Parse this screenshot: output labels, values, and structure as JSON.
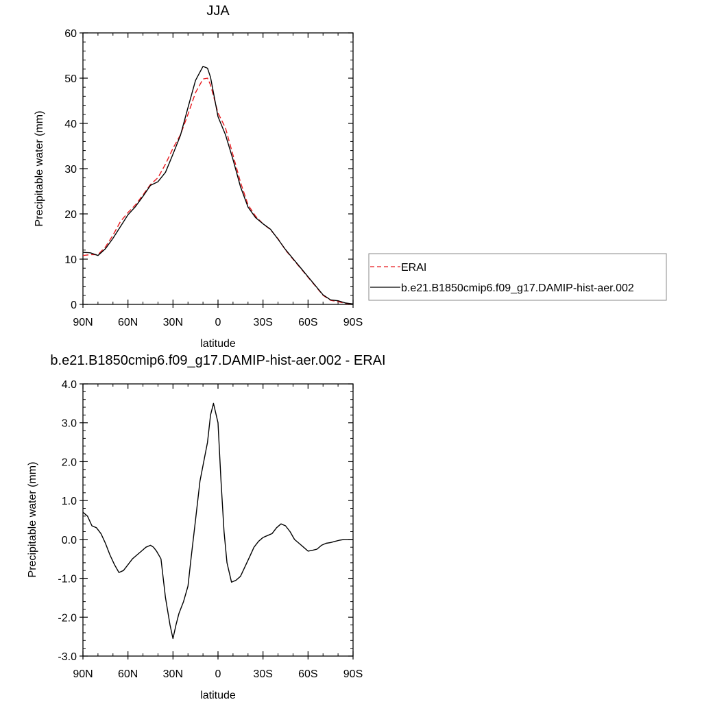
{
  "chart_data": [
    {
      "type": "line",
      "title": "JJA",
      "xlabel": "latitude",
      "ylabel": "Precipitable water (mm)",
      "xlim": [
        90,
        -90
      ],
      "ylim": [
        0,
        60
      ],
      "x_ticks": [
        90,
        60,
        30,
        0,
        -30,
        -60,
        -90
      ],
      "x_tick_labels": [
        "90N",
        "60N",
        "30N",
        "0",
        "30S",
        "60S",
        "90S"
      ],
      "y_ticks": [
        0,
        10,
        20,
        30,
        40,
        50,
        60
      ],
      "y_tick_labels": [
        "0",
        "10",
        "20",
        "30",
        "40",
        "50",
        "60"
      ],
      "legend": {
        "placement": "right",
        "entries": [
          {
            "name": "ERAI",
            "color": "#e8191e",
            "dash": "dashed"
          },
          {
            "name": "b.e21.B1850cmip6.f09_g17.DAMIP-hist-aer.002",
            "color": "#000000",
            "dash": "solid"
          }
        ]
      },
      "series": [
        {
          "name": "ERAI",
          "color": "#e8191e",
          "dash": "dashed",
          "x": [
            90,
            85,
            80,
            75,
            70,
            65,
            60,
            55,
            50,
            45,
            40,
            35,
            30,
            25,
            20,
            15,
            10,
            7,
            5,
            0,
            -5,
            -10,
            -15,
            -20,
            -25,
            -30,
            -35,
            -40,
            -45,
            -50,
            -55,
            -60,
            -65,
            -70,
            -75,
            -80,
            -85,
            -90
          ],
          "y": [
            10.8,
            11.0,
            11.0,
            12.7,
            15.3,
            18.3,
            20.3,
            22.0,
            24.2,
            26.5,
            28.0,
            31.0,
            34.5,
            37.5,
            42.0,
            46.8,
            49.8,
            50.0,
            48.5,
            42.3,
            39.0,
            33.0,
            27.0,
            22.0,
            19.5,
            17.8,
            16.5,
            14.5,
            12.0,
            10.0,
            8.0,
            6.0,
            4.0,
            2.0,
            0.9,
            0.6,
            0.2,
            0.1
          ]
        },
        {
          "name": "b.e21.B1850cmip6.f09_g17.DAMIP-hist-aer.002",
          "color": "#000000",
          "dash": "solid",
          "x": [
            90,
            85,
            80,
            75,
            70,
            65,
            60,
            55,
            50,
            45,
            40,
            35,
            30,
            25,
            20,
            15,
            10,
            7,
            5,
            0,
            -5,
            -10,
            -15,
            -20,
            -25,
            -30,
            -35,
            -40,
            -45,
            -50,
            -55,
            -60,
            -65,
            -70,
            -75,
            -80,
            -85,
            -90
          ],
          "y": [
            11.5,
            11.4,
            10.8,
            12.3,
            14.6,
            17.2,
            19.8,
            21.6,
            23.9,
            26.3,
            27.1,
            29.2,
            33.2,
            37.4,
            43.5,
            49.5,
            52.6,
            52.2,
            50.2,
            41.5,
            37.5,
            32.0,
            26.0,
            21.5,
            19.2,
            17.8,
            16.6,
            14.4,
            12.1,
            10.1,
            8.1,
            6.1,
            4.1,
            2.1,
            1.0,
            0.8,
            0.3,
            0.1
          ]
        }
      ]
    },
    {
      "type": "line",
      "title": "b.e21.B1850cmip6.f09_g17.DAMIP-hist-aer.002 - ERAI",
      "xlabel": "latitude",
      "ylabel": "Precipitable water (mm)",
      "xlim": [
        90,
        -90
      ],
      "ylim": [
        -3.0,
        4.0
      ],
      "x_ticks": [
        90,
        60,
        30,
        0,
        -30,
        -60,
        -90
      ],
      "x_tick_labels": [
        "90N",
        "60N",
        "30N",
        "0",
        "30S",
        "60S",
        "90S"
      ],
      "y_ticks": [
        -3,
        -2,
        -1,
        0,
        1,
        2,
        3,
        4
      ],
      "y_tick_labels": [
        "-3.0",
        "-2.0",
        "-1.0",
        "0.0",
        "1.0",
        "2.0",
        "3.0",
        "4.0"
      ],
      "series": [
        {
          "color": "#000000",
          "dash": "solid",
          "x": [
            90,
            87,
            84,
            81,
            78,
            75,
            72,
            69,
            66,
            63,
            60,
            57,
            54,
            51,
            48,
            45,
            43,
            41,
            38,
            35,
            32,
            30,
            28,
            26,
            23,
            20,
            18,
            15,
            12,
            9,
            7,
            5,
            3,
            0,
            -2,
            -4,
            -6,
            -9,
            -12,
            -15,
            -18,
            -21,
            -24,
            -27,
            -30,
            -33,
            -36,
            -39,
            -42,
            -45,
            -48,
            -51,
            -54,
            -57,
            -60,
            -63,
            -66,
            -69,
            -72,
            -75,
            -78,
            -81,
            -84,
            -87,
            -90
          ],
          "y": [
            0.7,
            0.6,
            0.35,
            0.3,
            0.15,
            -0.1,
            -0.4,
            -0.65,
            -0.85,
            -0.8,
            -0.65,
            -0.5,
            -0.4,
            -0.3,
            -0.2,
            -0.15,
            -0.2,
            -0.3,
            -0.5,
            -1.5,
            -2.2,
            -2.55,
            -2.2,
            -1.9,
            -1.6,
            -1.2,
            -0.5,
            0.5,
            1.5,
            2.1,
            2.5,
            3.2,
            3.5,
            3.0,
            1.5,
            0.2,
            -0.6,
            -1.1,
            -1.05,
            -0.95,
            -0.7,
            -0.45,
            -0.2,
            -0.05,
            0.05,
            0.1,
            0.15,
            0.3,
            0.4,
            0.35,
            0.2,
            0.0,
            -0.1,
            -0.2,
            -0.3,
            -0.28,
            -0.25,
            -0.15,
            -0.1,
            -0.08,
            -0.05,
            -0.02,
            0.0,
            0.0,
            0.0
          ]
        }
      ]
    }
  ]
}
